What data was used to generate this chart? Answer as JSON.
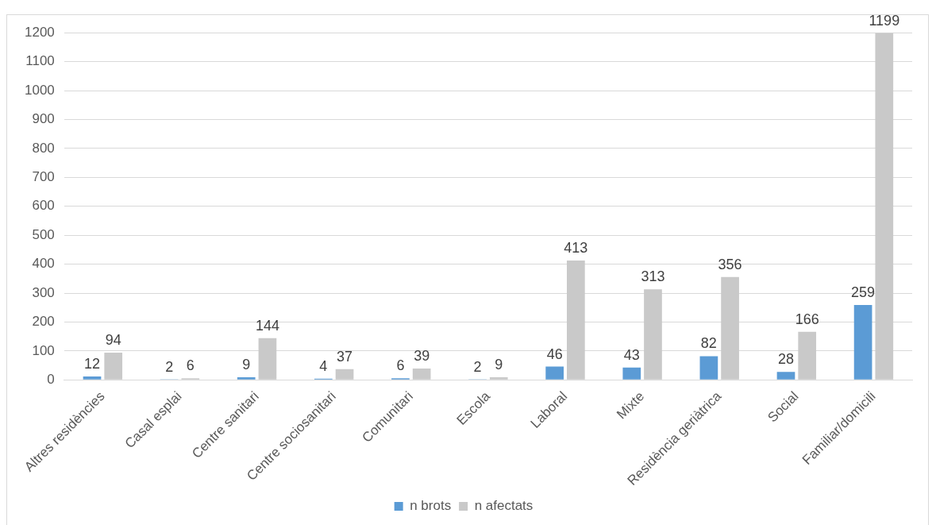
{
  "chart_data": {
    "type": "bar",
    "categories": [
      "Altres residències",
      "Casal esplai",
      "Centre sanitari",
      "Centre sociosanitari",
      "Comunitari",
      "Escola",
      "Laboral",
      "Mixte",
      "Residència geriàtrica",
      "Social",
      "Familiar/domicili"
    ],
    "series": [
      {
        "name": "n brots",
        "color": "#5b9bd5",
        "values": [
          12,
          2,
          9,
          4,
          6,
          2,
          46,
          43,
          82,
          28,
          259
        ]
      },
      {
        "name": "n afectats",
        "color": "#c9c9c9",
        "values": [
          94,
          6,
          144,
          37,
          39,
          9,
          413,
          313,
          356,
          166,
          1199
        ]
      }
    ],
    "ylim": [
      0,
      1200
    ],
    "yticks": [
      0,
      100,
      200,
      300,
      400,
      500,
      600,
      700,
      800,
      900,
      1000,
      1100,
      1200
    ],
    "grid": "y",
    "legend": "bottom",
    "data_labels": true
  }
}
